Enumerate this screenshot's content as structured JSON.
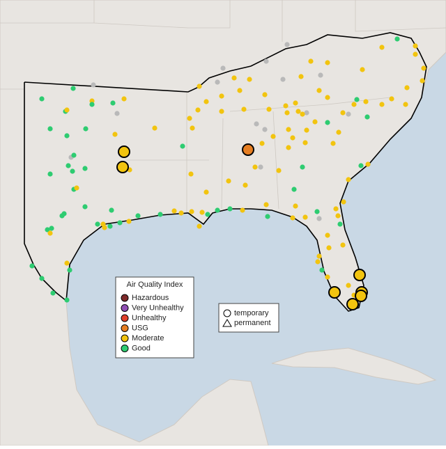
{
  "legend": {
    "title": "Air Quality Index",
    "items": [
      {
        "name": "Hazardous",
        "color": "#7e2a2a"
      },
      {
        "name": "Very Unhealthy",
        "color": "#8f4fb3"
      },
      {
        "name": "Unhealthy",
        "color": "#e0402a"
      },
      {
        "name": "USG",
        "color": "#e67e22"
      },
      {
        "name": "Moderate",
        "color": "#f2c40f"
      },
      {
        "name": "Good",
        "color": "#2ecc71"
      }
    ]
  },
  "monitor_legend": {
    "items": [
      "temporary",
      "permanent"
    ]
  }
}
